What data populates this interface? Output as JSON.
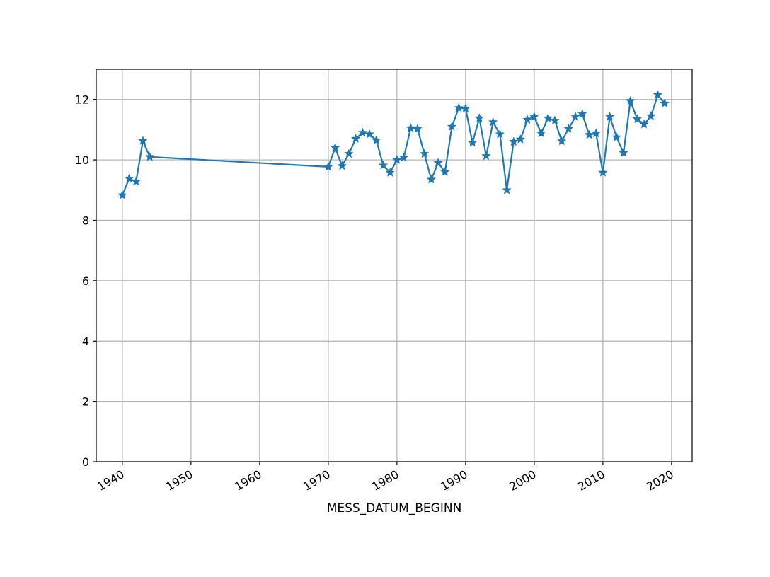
{
  "chart_data": {
    "type": "line",
    "title": "",
    "xlabel": "MESS_DATUM_BEGINN",
    "ylabel": "",
    "xlim": [
      1936.2,
      2023
    ],
    "ylim": [
      0,
      13
    ],
    "x_ticks": [
      {
        "value": 1940,
        "label": "1940"
      },
      {
        "value": 1950,
        "label": "1950"
      },
      {
        "value": 1960,
        "label": "1960"
      },
      {
        "value": 1970,
        "label": "1970"
      },
      {
        "value": 1980,
        "label": "1980"
      },
      {
        "value": 1990,
        "label": "1990"
      },
      {
        "value": 2000,
        "label": "2000"
      },
      {
        "value": 2010,
        "label": "2010"
      },
      {
        "value": 2020,
        "label": "2020"
      }
    ],
    "y_ticks": [
      {
        "value": 0,
        "label": "0"
      },
      {
        "value": 2,
        "label": "2"
      },
      {
        "value": 4,
        "label": "4"
      },
      {
        "value": 6,
        "label": "6"
      },
      {
        "value": 8,
        "label": "8"
      },
      {
        "value": 10,
        "label": "10"
      },
      {
        "value": 12,
        "label": "12"
      }
    ],
    "grid": true,
    "marker": "star",
    "color": "#1f77b4",
    "series": [
      {
        "x": [
          1940,
          1941,
          1942,
          1943,
          1944,
          1970,
          1971,
          1972,
          1973,
          1974,
          1975,
          1976,
          1977,
          1978,
          1979,
          1980,
          1981,
          1982,
          1983,
          1984,
          1985,
          1986,
          1987,
          1988,
          1989,
          1990,
          1991,
          1992,
          1993,
          1994,
          1995,
          1996,
          1997,
          1998,
          1999,
          2000,
          2001,
          2002,
          2003,
          2004,
          2005,
          2006,
          2007,
          2008,
          2009,
          2010,
          2011,
          2012,
          2013,
          2014,
          2015,
          2016,
          2017,
          2018,
          2019
        ],
        "values": [
          8.83,
          9.38,
          9.28,
          10.63,
          10.1,
          9.77,
          10.4,
          9.8,
          10.2,
          10.7,
          10.9,
          10.85,
          10.65,
          9.82,
          9.58,
          10.0,
          10.08,
          11.05,
          11.03,
          10.2,
          9.35,
          9.9,
          9.6,
          11.1,
          11.72,
          11.7,
          10.57,
          11.38,
          10.13,
          11.25,
          10.85,
          9.0,
          10.6,
          10.68,
          11.33,
          11.43,
          10.88,
          11.38,
          11.3,
          10.62,
          11.03,
          11.43,
          11.52,
          10.83,
          10.88,
          9.58,
          11.43,
          10.75,
          10.23,
          11.95,
          11.35,
          11.18,
          11.45,
          12.15,
          11.87
        ]
      }
    ]
  }
}
